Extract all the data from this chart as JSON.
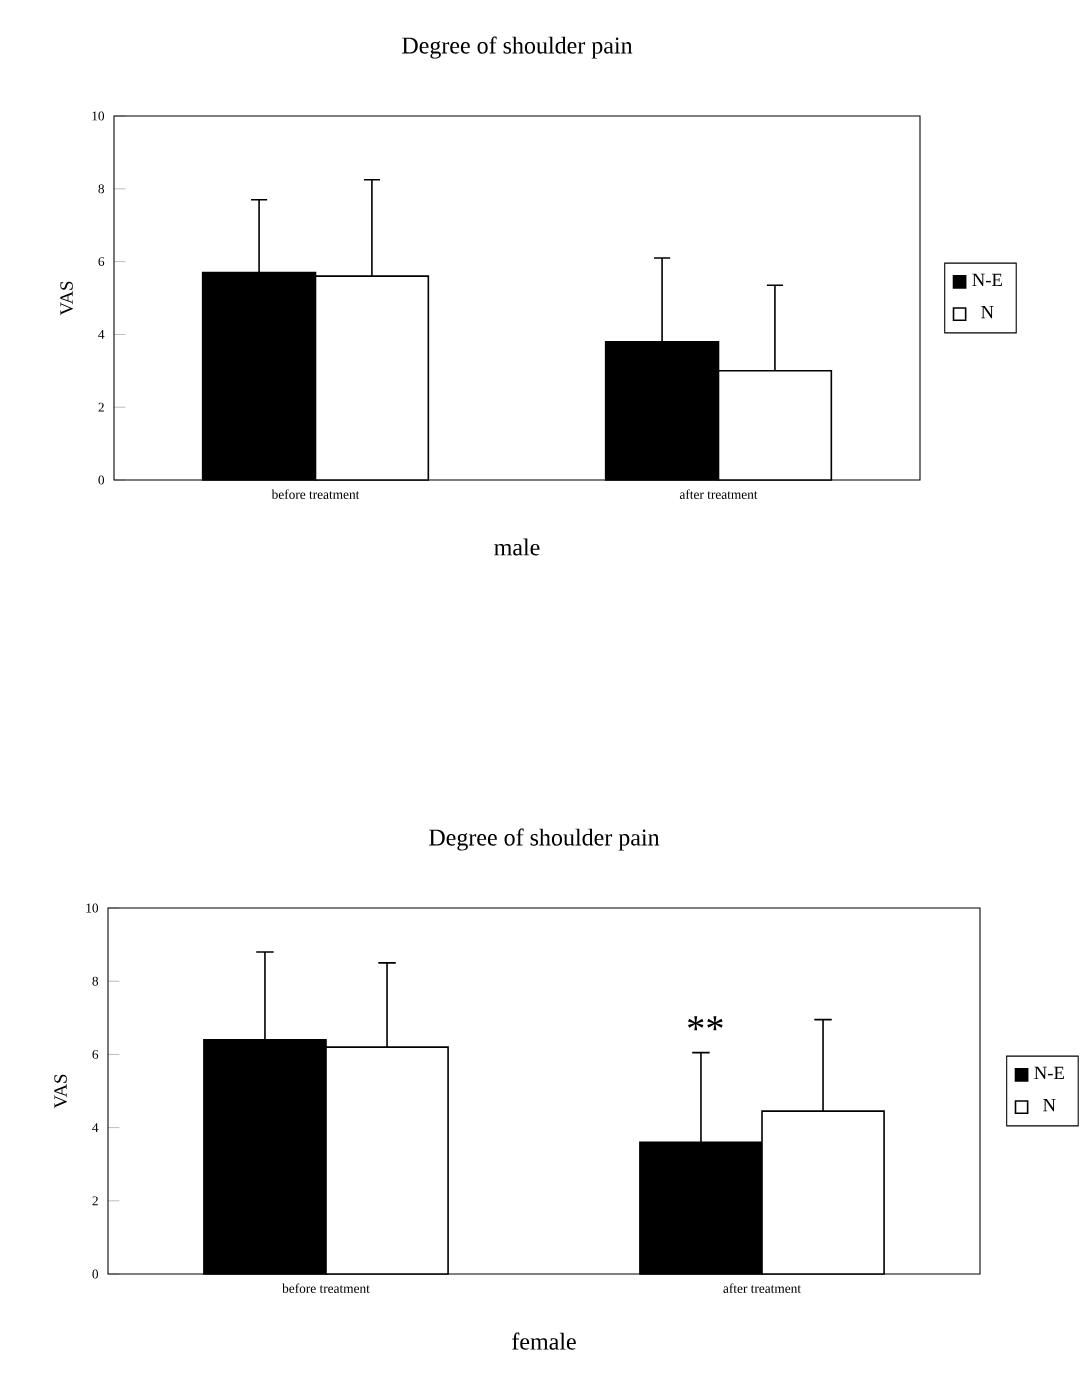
{
  "chart_data": [
    {
      "type": "bar",
      "title": "Degree of shoulder pain",
      "xlabel": "male",
      "ylabel": "VAS",
      "categories": [
        "before treatment",
        "after treatment"
      ],
      "series": [
        {
          "name": "N-E",
          "color": "#000000",
          "values": [
            5.7,
            3.8
          ],
          "errors": [
            [
              5.7,
              7.7
            ],
            [
              3.8,
              6.1
            ]
          ]
        },
        {
          "name": "N",
          "color": "#ffffff",
          "values": [
            5.6,
            3.0
          ],
          "errors": [
            [
              5.6,
              8.25
            ],
            [
              3.0,
              5.35
            ]
          ]
        }
      ],
      "ylim": [
        0,
        10
      ],
      "yticks": [
        0,
        2,
        4,
        6,
        8,
        10
      ],
      "legend": "right"
    },
    {
      "type": "bar",
      "title": "Degree of shoulder pain",
      "xlabel": "female",
      "ylabel": "VAS",
      "categories": [
        "before treatment",
        "after treatment"
      ],
      "series": [
        {
          "name": "N-E",
          "color": "#000000",
          "values": [
            6.4,
            3.6
          ],
          "errors": [
            [
              6.4,
              8.8
            ],
            [
              3.6,
              6.05
            ]
          ]
        },
        {
          "name": "N",
          "color": "#ffffff",
          "values": [
            6.2,
            4.45
          ],
          "errors": [
            [
              6.2,
              8.5
            ],
            [
              4.45,
              6.95
            ]
          ]
        }
      ],
      "ylim": [
        0,
        10
      ],
      "yticks": [
        0,
        2,
        4,
        6,
        8,
        10
      ],
      "legend": "right",
      "annotations": [
        "**"
      ]
    }
  ]
}
